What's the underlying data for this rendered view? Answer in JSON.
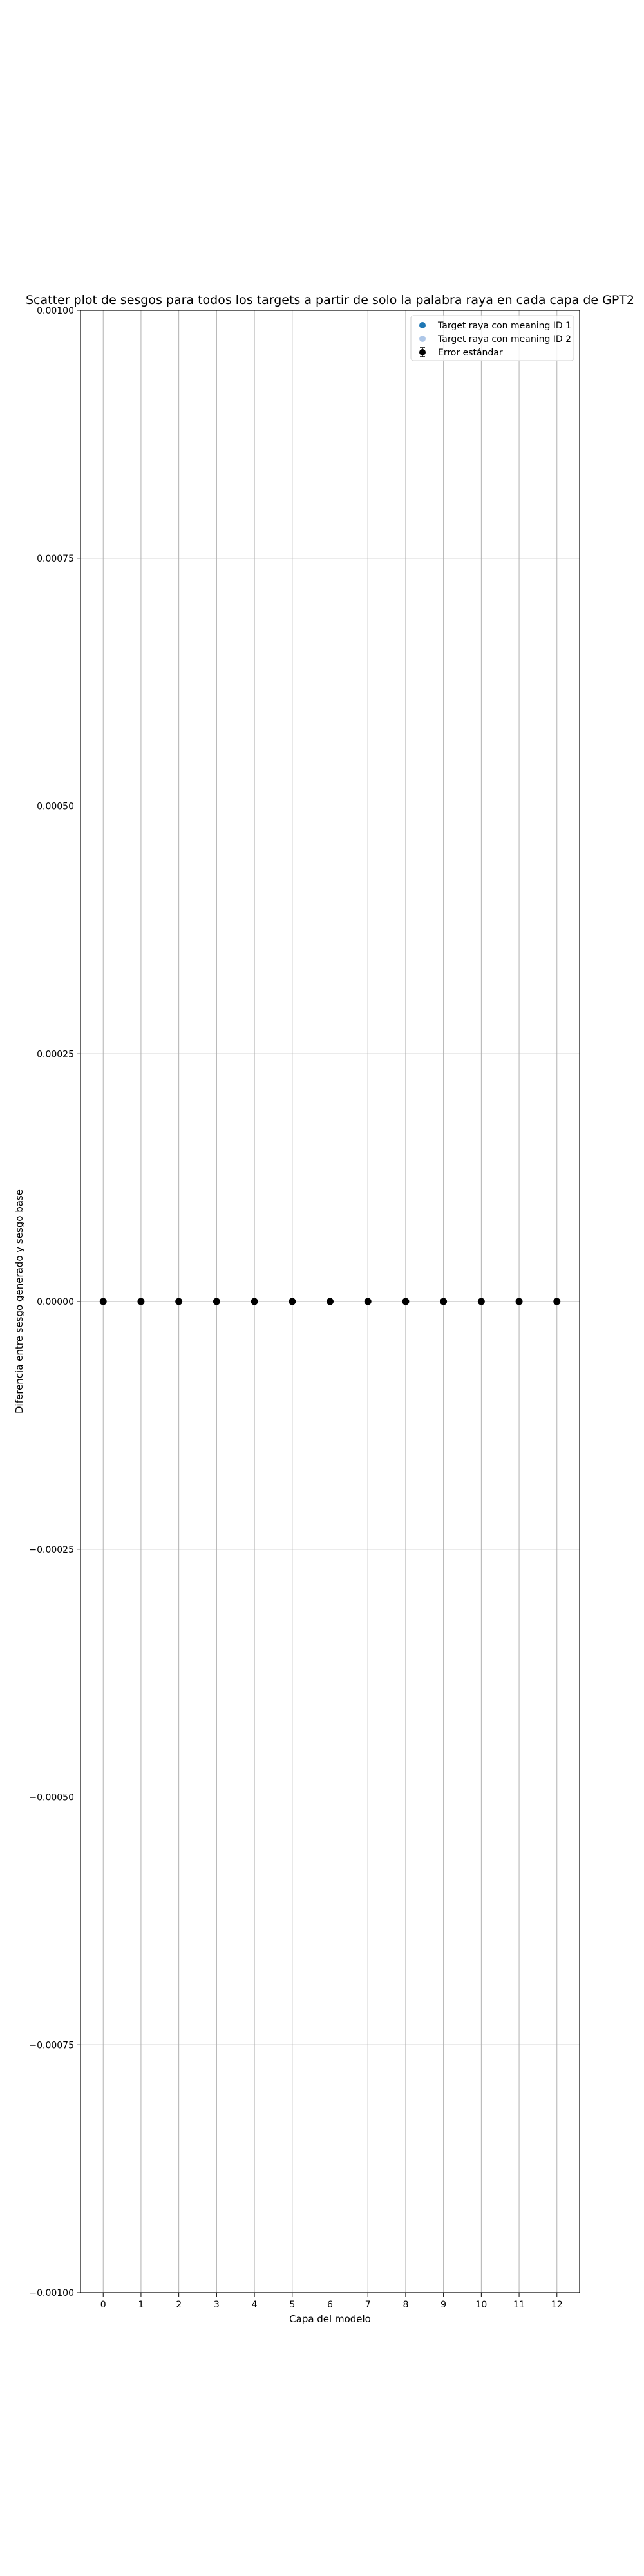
{
  "chart_data": {
    "type": "scatter",
    "title": "Scatter plot de sesgos para todos los targets a partir de solo la palabra raya en cada capa de GPT2",
    "xlabel": "Capa del modelo",
    "ylabel": "Diferencia entre sesgo generado y sesgo base",
    "x_ticks": [
      "0",
      "1",
      "2",
      "3",
      "4",
      "5",
      "6",
      "7",
      "8",
      "9",
      "10",
      "11",
      "12"
    ],
    "y_ticks": [
      0.001,
      0.00075,
      0.0005,
      0.00025,
      0.0,
      -0.00025,
      -0.0005,
      -0.00075,
      -0.001
    ],
    "y_tick_labels": [
      "0.00100",
      "0.00075",
      "0.00050",
      "0.00025",
      "0.00000",
      "−0.00025",
      "−0.00050",
      "−0.00075",
      "−0.00100"
    ],
    "xlim": [
      -0.6,
      12.6
    ],
    "ylim": [
      -0.001,
      0.001
    ],
    "grid": true,
    "legend_position": "top-right",
    "legend": [
      {
        "label": "Target raya con meaning ID 1",
        "marker": "circle",
        "color": "#1f77b4"
      },
      {
        "label": "Target raya con meaning ID 2",
        "marker": "circle",
        "color": "#aec7e8"
      },
      {
        "label": "Error estándar",
        "marker": "errorbar",
        "color": "#000000"
      }
    ],
    "series": [
      {
        "name": "Target raya con meaning ID 1",
        "color": "#1f77b4",
        "x": [
          0,
          1,
          2,
          3,
          4,
          5,
          6,
          7,
          8,
          9,
          10,
          11,
          12
        ],
        "y": [
          0,
          0,
          0,
          0,
          0,
          0,
          0,
          0,
          0,
          0,
          0,
          0,
          0
        ]
      },
      {
        "name": "Target raya con meaning ID 2",
        "color": "#aec7e8",
        "x": [
          0,
          1,
          2,
          3,
          4,
          5,
          6,
          7,
          8,
          9,
          10,
          11,
          12
        ],
        "y": [
          0,
          0,
          0,
          0,
          0,
          0,
          0,
          0,
          0,
          0,
          0,
          0,
          0
        ]
      }
    ],
    "error_bars": {
      "name": "Error estándar",
      "color": "#000000",
      "x": [
        0,
        1,
        2,
        3,
        4,
        5,
        6,
        7,
        8,
        9,
        10,
        11,
        12
      ],
      "y": [
        0,
        0,
        0,
        0,
        0,
        0,
        0,
        0,
        0,
        0,
        0,
        0,
        0
      ],
      "err": [
        0,
        0,
        0,
        0,
        0,
        0,
        0,
        0,
        0,
        0,
        0,
        0,
        0
      ]
    }
  }
}
